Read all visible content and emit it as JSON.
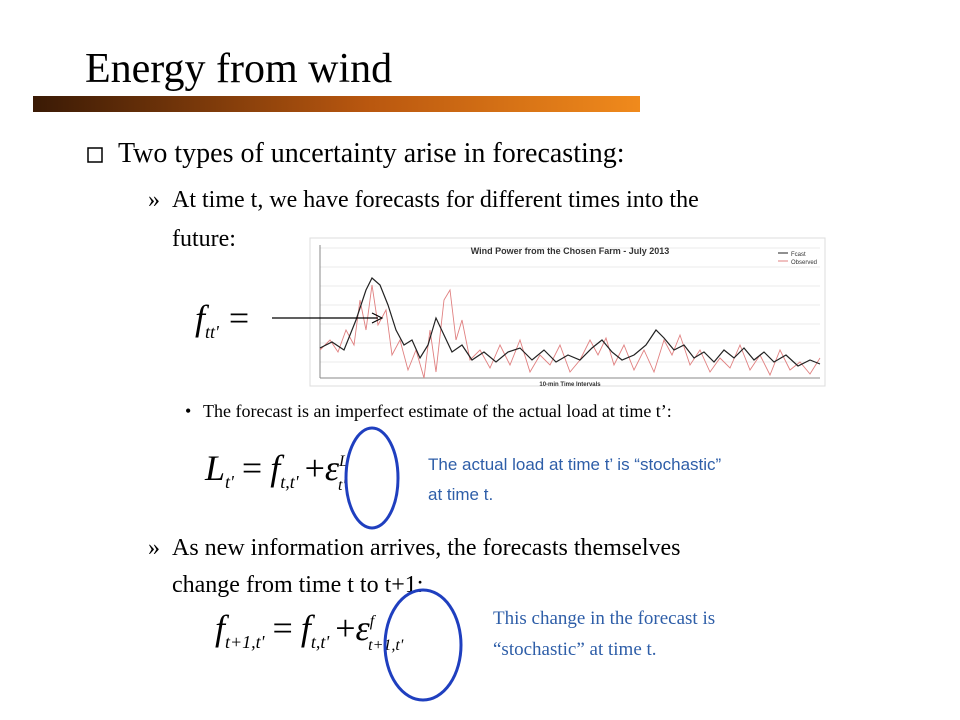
{
  "slide": {
    "title": "Energy from wind",
    "bullet1": "Two types of uncertainty arise in forecasting:",
    "sub1": {
      "line1": "At time t, we have forecasts for different times into the",
      "line2": "future:"
    },
    "chart": {
      "title": "Wind Power from the Chosen Farm - July 2013",
      "legend": [
        "Fcast",
        "Observed"
      ],
      "xlabel": "10-min Time Intervals"
    },
    "eq1": {
      "f": "f",
      "sub": "tt'",
      "eq": "="
    },
    "bullet2": "The forecast is an imperfect estimate of the actual load at time t’:",
    "eq2": {
      "L": "L",
      "Lsub": "t'",
      "eq": "=",
      "f": "f",
      "fsub": "t,t'",
      "plus": "+",
      "eps": "ε",
      "sup": "L",
      "epssub": "t'"
    },
    "note1": {
      "line1": "The actual load at time t’ is “stochastic”",
      "line2": "at time t."
    },
    "sub2": {
      "line1": "As new information arrives, the forecasts themselves",
      "line2": "change from time t to t+1:"
    },
    "eq3": {
      "f1": "f",
      "f1sub": "t+1,t'",
      "eq": "=",
      "f2": "f",
      "f2sub": "t,t'",
      "plus": "+",
      "eps": "ε",
      "sup": "f",
      "epssub": "t+1,t'"
    },
    "note2": {
      "line1": "This change in the forecast is",
      "line2": "“stochastic” at time t."
    }
  }
}
